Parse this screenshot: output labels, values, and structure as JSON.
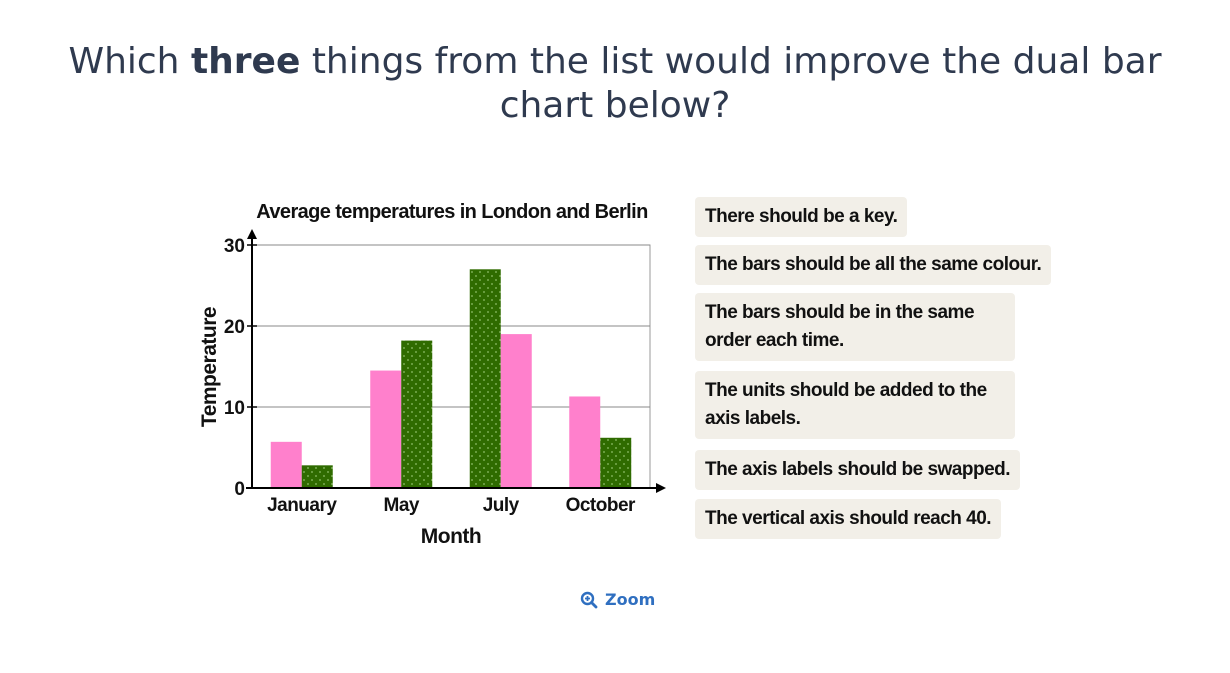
{
  "question": {
    "prefix": "Which ",
    "emphasis": "three",
    "suffix": " things from the list would improve the dual bar chart below?"
  },
  "options": [
    "There should be a key.",
    "The bars should be all the same colour.",
    "The bars should be in the same order each time.",
    "The units should be added to the axis labels.",
    "The axis labels should be swapped.",
    "The vertical axis should reach 40."
  ],
  "zoom_label": "Zoom",
  "chart_data": {
    "type": "bar",
    "title": "Average temperatures in London and Berlin",
    "xlabel": "Month",
    "ylabel": "Temperature",
    "categories": [
      "January",
      "May",
      "July",
      "October"
    ],
    "series": [
      {
        "values": [
          5.7,
          14.5,
          19.0,
          11.3
        ],
        "color": "#ff80cc",
        "pattern": "solid"
      },
      {
        "values": [
          2.8,
          18.2,
          27.0,
          6.2
        ],
        "color": "#2f6b00",
        "pattern": "dotted"
      }
    ],
    "bar_order": [
      [
        0,
        1
      ],
      [
        0,
        1
      ],
      [
        1,
        0
      ],
      [
        0,
        1
      ]
    ],
    "ylim": [
      0,
      30
    ],
    "yticks": [
      0,
      10,
      20,
      30
    ],
    "grid": true,
    "legend": "none"
  }
}
